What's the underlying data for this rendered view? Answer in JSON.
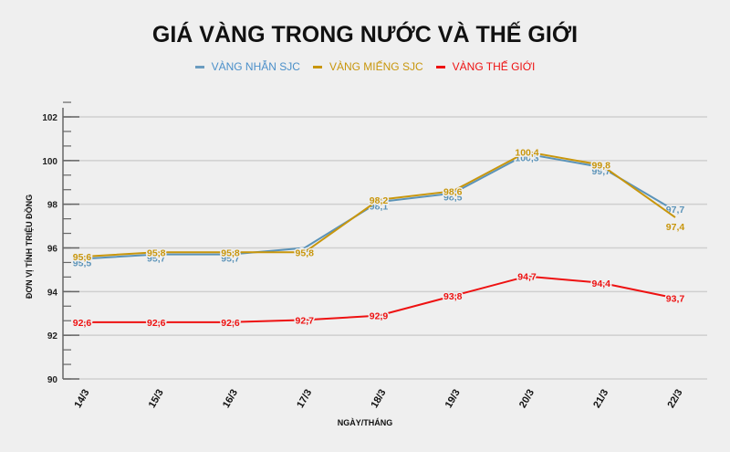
{
  "title": "GIÁ VÀNG TRONG NƯỚC VÀ THẾ GIỚI",
  "legend": [
    {
      "label": "VÀNG NHẪN SJC",
      "color": "#4a8fc9"
    },
    {
      "label": "VÀNG MIẾNG SJC",
      "color": "#c8960c"
    },
    {
      "label": "VÀNG THẾ GIỚI",
      "color": "#ee1111"
    }
  ],
  "chart_data": {
    "type": "line",
    "title": "GIÁ VÀNG TRONG NƯỚC VÀ THẾ GIỚI",
    "xlabel": "NGÀY/THÁNG",
    "ylabel": "ĐƠN VỊ TÍNH TRIỆU ĐỒNG",
    "categories": [
      "14/3",
      "15/3",
      "16/3",
      "17/3",
      "18/3",
      "19/3",
      "20/3",
      "21/3",
      "22/3"
    ],
    "ylim": [
      90,
      102
    ],
    "yticks": [
      90,
      92,
      94,
      96,
      98,
      100,
      102
    ],
    "grid": true,
    "legend_position": "top",
    "series": [
      {
        "name": "VÀNG NHẪN SJC",
        "color": "#5b93b8",
        "values": [
          95.5,
          95.7,
          95.7,
          96.0,
          98.1,
          98.5,
          100.3,
          99.7,
          97.7
        ],
        "labels": [
          "95,5",
          "95,7",
          "95,7",
          "96",
          "98,1",
          "98,5",
          "100,3",
          "99,7",
          "97,7"
        ]
      },
      {
        "name": "VÀNG MIẾNG SJC",
        "color": "#c8960c",
        "values": [
          95.6,
          95.8,
          95.8,
          95.8,
          98.2,
          98.6,
          100.4,
          99.8,
          97.4
        ],
        "labels": [
          "95,6",
          "95,8",
          "95,8",
          "95,8",
          "98,2",
          "98,6",
          "100,4",
          "99,8",
          "97,4"
        ]
      },
      {
        "name": "VÀNG THẾ GIỚI",
        "color": "#ee1111",
        "values": [
          92.6,
          92.6,
          92.6,
          92.7,
          92.9,
          93.8,
          94.7,
          94.4,
          93.7
        ],
        "labels": [
          "92,6",
          "92,6",
          "92,6",
          "92,7",
          "92,9",
          "93,8",
          "94,7",
          "94,4",
          "93,7"
        ]
      }
    ]
  }
}
